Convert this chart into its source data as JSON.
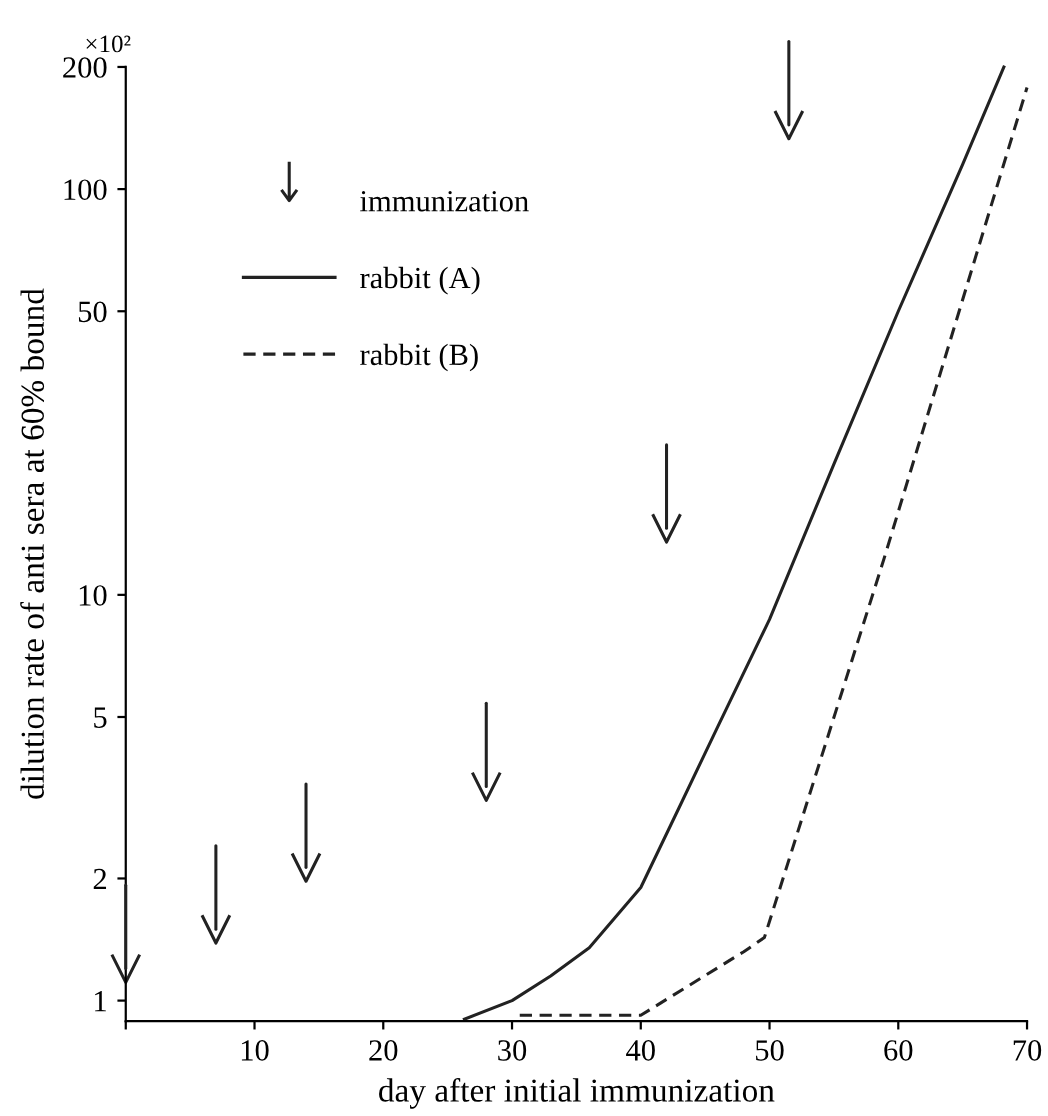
{
  "chart_data": {
    "type": "line",
    "xlabel": "day after initial immunization",
    "ylabel": "dilution rate of anti sera at 60% bound",
    "annotations": [
      "×10²"
    ],
    "log": "y",
    "xlim": [
      0,
      70
    ],
    "xticks": [
      {
        "value": 0,
        "label": null
      },
      10,
      20,
      30,
      40,
      50,
      60,
      70
    ],
    "ylim": [
      0.89,
      200
    ],
    "yticks": [
      1,
      2,
      5,
      10,
      50,
      100,
      200
    ],
    "grid": false,
    "legend": "top left",
    "series": [
      {
        "name": "immunization",
        "type": "scatter",
        "color": "#222222",
        "x": [
          0,
          7,
          14,
          28,
          42,
          51.5
        ],
        "values": [
          1.2,
          1.5,
          2.13,
          3.37,
          14.6,
          144
        ]
      },
      {
        "name": "rabbit (A)",
        "color": "#222222",
        "line_style": "solid",
        "x": [
          26.3,
          30,
          33,
          36,
          40,
          43,
          46,
          50,
          55,
          60,
          65,
          68.2
        ],
        "values": [
          0.9,
          1.0,
          1.15,
          1.35,
          1.9,
          3.0,
          4.75,
          8.7,
          21,
          50,
          115,
          200
        ]
      },
      {
        "name": "rabbit (B)",
        "color": "#222222",
        "line_style": "dashed",
        "x": [
          30.6,
          40,
          48,
          49.6,
          58.9,
          70
        ],
        "values": [
          0.92,
          0.92,
          1.32,
          1.43,
          12.3,
          178
        ]
      }
    ]
  }
}
